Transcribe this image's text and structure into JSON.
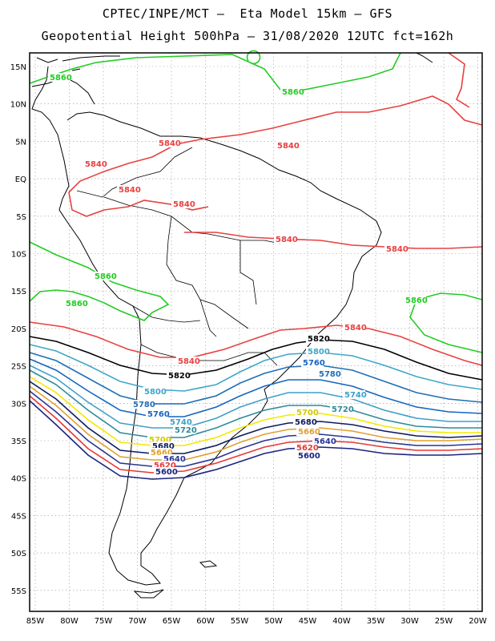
{
  "header": {
    "line1": "CPTEC/INPE/MCT –  Eta Model 15km – GFS",
    "line2": "Geopotential Height 500hPa – 31/08/2020 12UTC fct=162h"
  },
  "axes": {
    "lat_labels": [
      "15N",
      "10N",
      "5N",
      "EQ",
      "5S",
      "10S",
      "15S",
      "20S",
      "25S",
      "30S",
      "35S",
      "40S",
      "45S",
      "50S",
      "55S"
    ],
    "lon_labels": [
      "85W",
      "80W",
      "75W",
      "70W",
      "65W",
      "60W",
      "55W",
      "50W",
      "45W",
      "40W",
      "35W",
      "30W",
      "25W",
      "20W"
    ],
    "grid": true
  },
  "colors": {
    "5600": "#1a237e",
    "5620": "#e53935",
    "5640": "#283593",
    "5660": "#e0a030",
    "5680": "#0d1b5e",
    "5700": "#f5e800",
    "5720": "#2e8b9a",
    "5740": "#3fa0c8",
    "5760": "#1565c0",
    "5780": "#1e6fb5",
    "5800": "#3fa7c9",
    "5820": "#000000",
    "5840": "#e84040",
    "5860": "#22cc22",
    "coast": "#000000",
    "grid": "#999999"
  },
  "contour_labels": [
    {
      "text": "5860",
      "color": "#22cc22"
    },
    {
      "text": "5860",
      "color": "#22cc22"
    },
    {
      "text": "5860",
      "color": "#22cc22"
    },
    {
      "text": "5860",
      "color": "#22cc22"
    },
    {
      "text": "5860",
      "color": "#22cc22"
    },
    {
      "text": "5840",
      "color": "#e84040"
    },
    {
      "text": "5840",
      "color": "#e84040"
    },
    {
      "text": "5840",
      "color": "#e84040"
    },
    {
      "text": "5840",
      "color": "#e84040"
    },
    {
      "text": "5840",
      "color": "#e84040"
    },
    {
      "text": "5840",
      "color": "#e84040"
    },
    {
      "text": "5840",
      "color": "#e84040"
    },
    {
      "text": "5840",
      "color": "#e84040"
    },
    {
      "text": "5840",
      "color": "#e84040"
    },
    {
      "text": "5820",
      "color": "#000000"
    },
    {
      "text": "5820",
      "color": "#000000"
    },
    {
      "text": "5800",
      "color": "#3fa7c9"
    },
    {
      "text": "5800",
      "color": "#3fa7c9"
    },
    {
      "text": "5780",
      "color": "#1e6fb5"
    },
    {
      "text": "5780",
      "color": "#1e6fb5"
    },
    {
      "text": "5760",
      "color": "#1565c0"
    },
    {
      "text": "5760",
      "color": "#1565c0"
    },
    {
      "text": "5740",
      "color": "#3fa0c8"
    },
    {
      "text": "5740",
      "color": "#3fa0c8"
    },
    {
      "text": "5720",
      "color": "#2e8b9a"
    },
    {
      "text": "5720",
      "color": "#2e8b9a"
    },
    {
      "text": "5700",
      "color": "#d4c800"
    },
    {
      "text": "5700",
      "color": "#d4c800"
    },
    {
      "text": "5680",
      "color": "#0d1b5e"
    },
    {
      "text": "5680",
      "color": "#0d1b5e"
    },
    {
      "text": "5660",
      "color": "#e0a030"
    },
    {
      "text": "5660",
      "color": "#e0a030"
    },
    {
      "text": "5640",
      "color": "#283593"
    },
    {
      "text": "5640",
      "color": "#283593"
    },
    {
      "text": "5620",
      "color": "#e53935"
    },
    {
      "text": "5620",
      "color": "#e53935"
    },
    {
      "text": "5600",
      "color": "#1a237e"
    },
    {
      "text": "5600",
      "color": "#1a237e"
    }
  ]
}
